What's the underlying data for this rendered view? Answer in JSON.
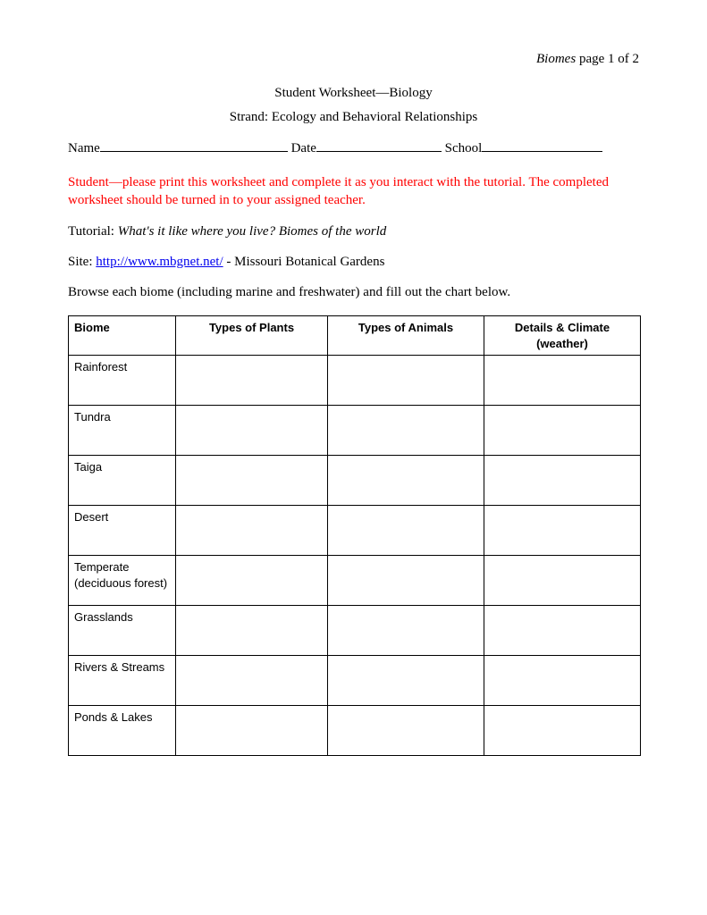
{
  "header": {
    "topic_italic": "Biomes",
    "page_text": " page 1 of 2",
    "title": "Student Worksheet—Biology",
    "strand_prefix": "Strand:  ",
    "strand_text": "Ecology and Behavioral Relationships"
  },
  "form": {
    "name_label": "Name",
    "date_label": " Date",
    "school_label": " School"
  },
  "red_note": "Student—please print this worksheet and complete it as you interact with the tutorial.  The completed worksheet should be turned in to your assigned teacher.",
  "tutorial": {
    "prefix": "Tutorial: ",
    "text": "What's it like where you live?  Biomes of the world"
  },
  "site": {
    "prefix": "Site:  ",
    "url": "http://www.mbgnet.net/",
    "suffix": "    - Missouri Botanical Gardens"
  },
  "browse_text": "Browse each biome (including marine and freshwater) and fill out the chart below.",
  "table": {
    "columns": [
      "Biome",
      "Types of Plants",
      "Types of Animals",
      "Details & Climate (weather)"
    ],
    "rows": [
      {
        "main": "Rainforest",
        "sub": ""
      },
      {
        "main": "Tundra",
        "sub": ""
      },
      {
        "main": "Taiga",
        "sub": ""
      },
      {
        "main": "Desert",
        "sub": ""
      },
      {
        "main": "Temperate",
        "sub": "(deciduous forest)"
      },
      {
        "main": "Grasslands",
        "sub": ""
      },
      {
        "main": "Rivers & Streams",
        "sub": ""
      },
      {
        "main": "Ponds & Lakes",
        "sub": ""
      }
    ],
    "border_color": "#000000",
    "header_font": "Verdana",
    "body_font": "Verdana"
  },
  "colors": {
    "text": "#000000",
    "red": "#ff0000",
    "link": "#0000ee",
    "background": "#ffffff"
  }
}
